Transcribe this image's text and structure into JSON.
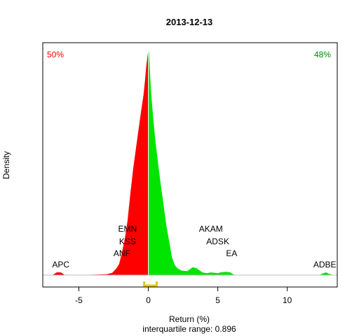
{
  "chart_data": {
    "type": "area",
    "title": "2013-12-13",
    "xlabel": "Return (%)",
    "ylabel": "Density",
    "subtitle": "interquartile range: 0.896",
    "xlim": [
      -7.6,
      13.6
    ],
    "ylim": [
      0,
      1.0
    ],
    "x_ticks": [
      -5,
      0,
      5,
      10
    ],
    "tick_labels": [
      "-5",
      "0",
      "5",
      "10"
    ],
    "split_at": 0,
    "pct_negative": "50%",
    "pct_positive": "48%",
    "colors": {
      "negative": "#ff0000",
      "positive": "#00e400",
      "iqr": "#e6c800",
      "axis": "#000000",
      "baseline": "#bebebe"
    },
    "iqr": [
      -0.3,
      0.6
    ],
    "density": {
      "x": [
        -7.5,
        -6.9,
        -6.6,
        -6.3,
        -6.0,
        -5.0,
        -4.0,
        -3.0,
        -2.6,
        -2.3,
        -2.1,
        -1.9,
        -1.7,
        -1.5,
        -1.3,
        -1.1,
        -0.9,
        -0.7,
        -0.5,
        -0.35,
        -0.25,
        -0.15,
        -0.05,
        0.0,
        0.05,
        0.1,
        0.2,
        0.35,
        0.5,
        0.7,
        0.9,
        1.1,
        1.3,
        1.5,
        1.7,
        1.9,
        2.1,
        2.4,
        2.8,
        3.2,
        3.5,
        3.7,
        3.9,
        4.2,
        4.5,
        4.8,
        5.0,
        5.2,
        5.6,
        5.9,
        6.1,
        6.3,
        6.7,
        8.0,
        10.0,
        12.3,
        12.6,
        12.8,
        13.0,
        13.3
      ],
      "y": [
        0.0,
        0.0,
        0.012,
        0.012,
        0.0,
        0.0,
        0.002,
        0.004,
        0.01,
        0.03,
        0.05,
        0.1,
        0.16,
        0.24,
        0.36,
        0.47,
        0.56,
        0.65,
        0.74,
        0.8,
        0.86,
        0.93,
        0.98,
        1.0,
        0.99,
        0.93,
        0.81,
        0.7,
        0.6,
        0.5,
        0.4,
        0.31,
        0.22,
        0.15,
        0.08,
        0.045,
        0.03,
        0.02,
        0.018,
        0.035,
        0.03,
        0.02,
        0.012,
        0.008,
        0.012,
        0.01,
        0.008,
        0.012,
        0.015,
        0.012,
        0.004,
        0.0,
        0.0,
        0.0,
        0.0,
        0.0,
        0.008,
        0.012,
        0.006,
        0.0
      ]
    },
    "annotations": [
      {
        "text": "EMN",
        "x": -1.5,
        "row": 1
      },
      {
        "text": "KSS",
        "x": -1.5,
        "row": 2
      },
      {
        "text": "ANF",
        "x": -1.9,
        "row": 3
      },
      {
        "text": "APC",
        "x": -6.3,
        "row": 4
      },
      {
        "text": "AKAM",
        "x": 4.5,
        "row": 1
      },
      {
        "text": "ADSK",
        "x": 5.0,
        "row": 2
      },
      {
        "text": "EA",
        "x": 6.0,
        "row": 3
      },
      {
        "text": "ADBE",
        "x": 12.7,
        "row": 4
      }
    ]
  }
}
